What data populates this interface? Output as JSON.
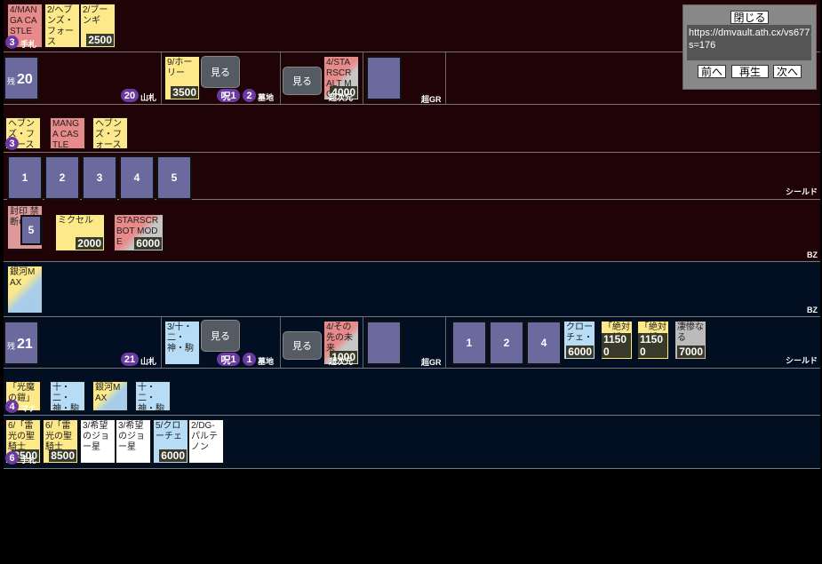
{
  "opp": {
    "hand": {
      "cards": [
        {
          "text": "4/MANGA CASTLE",
          "color": "r"
        },
        {
          "text": "2/ヘブンズ・フォース",
          "color": "y"
        },
        {
          "text": "2/ブーンギ",
          "color": "y",
          "power": "2500"
        }
      ],
      "count": "3",
      "label": "手札"
    },
    "deck": {
      "count": "20",
      "prefix": "残",
      "badge": "20",
      "label": "山札"
    },
    "graveyard": {
      "card": "9/ホーリー",
      "power": "3500",
      "see": "見る",
      "curse_label": "呪",
      "curse": "1",
      "count": "2",
      "label": "墓地"
    },
    "hyperspace": {
      "see": "見る",
      "card": "4/STARSCR ALT MODE",
      "power": "4000",
      "label": "超次元"
    },
    "gr": {
      "label": "超GR"
    },
    "mana": {
      "cards": [
        {
          "text": "ヘブンズ・フォース",
          "color": "y"
        },
        {
          "text": "MANGA CASTLE",
          "color": "r"
        },
        {
          "text": "ヘブンズ・フォース",
          "color": "y"
        }
      ],
      "count": "3"
    },
    "shields": {
      "items": [
        "1",
        "2",
        "3",
        "4",
        "5"
      ],
      "label": "シールド"
    },
    "battle": {
      "cards": [
        {
          "text": "封印 禁断の5",
          "sub": "5"
        },
        {
          "text": "ミクセル",
          "power": "2000"
        },
        {
          "text": "STARSCR BOT MODE",
          "power": "6000"
        }
      ],
      "label": "BZ"
    }
  },
  "me": {
    "battle": {
      "cards": [
        {
          "text": "銀河MAX"
        }
      ],
      "label": "BZ"
    },
    "deck": {
      "count": "21",
      "prefix": "残",
      "badge": "21",
      "label": "山札"
    },
    "graveyard": {
      "card": "3/十・二・神・駒",
      "see": "見る",
      "curse_label": "呪",
      "curse": "1",
      "count": "1",
      "label": "墓地"
    },
    "hyperspace": {
      "see": "見る",
      "card": "4/その先の未来",
      "power": "1000",
      "label": "超次元"
    },
    "gr": {
      "label": "超GR"
    },
    "shields": {
      "items": [
        "1",
        "2",
        "4"
      ],
      "cards": [
        {
          "text": "クローチェ・",
          "power": "6000",
          "color": "b"
        },
        {
          "text": "「絶対の楯",
          "power": "11500",
          "color": "y"
        },
        {
          "text": "「絶対の楯",
          "power": "11500",
          "color": "y"
        },
        {
          "text": "凄惨なる",
          "power": "7000",
          "color": "g"
        }
      ],
      "label": "シールド"
    },
    "mana": {
      "cards": [
        {
          "text": "「光魔の鎧」",
          "color": "y"
        },
        {
          "text": "十・二・神・駒",
          "color": "b"
        },
        {
          "text": "銀河MAX",
          "color": "y"
        },
        {
          "text": "十・二・神・駒",
          "color": "b"
        }
      ],
      "count": "4",
      "label": "マナ"
    },
    "hand": {
      "cards": [
        {
          "text": "6/「雷光の聖騎士",
          "power": "8500"
        },
        {
          "text": "6/「雷光の聖騎士",
          "power": "8500"
        },
        {
          "text": "3/希望のジョー星"
        },
        {
          "text": "3/希望のジョー星"
        },
        {
          "text": "5/クローチェ",
          "power": "6000"
        },
        {
          "text": "2/DG-パルテノン"
        }
      ],
      "count": "6",
      "label": "手札"
    }
  },
  "panel": {
    "close": "閉じる",
    "url": "https://dmvault.ath.cx/vs677…\ns=176",
    "prev": "前へ",
    "play": "再生",
    "next": "次へ"
  }
}
